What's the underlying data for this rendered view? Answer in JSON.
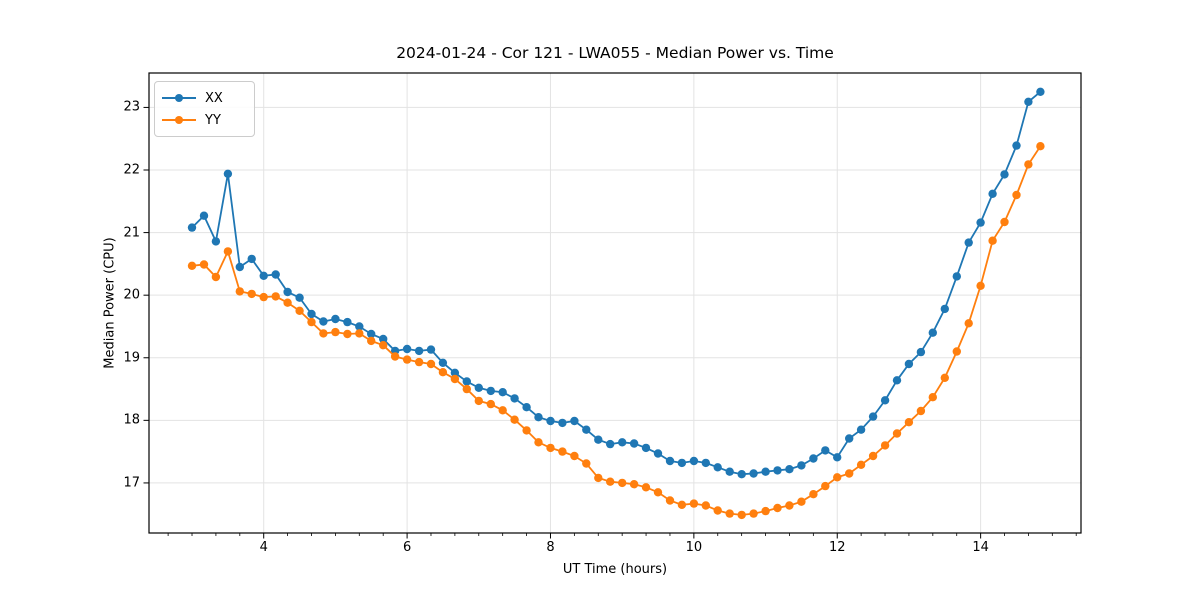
{
  "chart_data": {
    "type": "line",
    "title": "2024-01-24 - Cor 121 - LWA055 - Median Power vs. Time",
    "xlabel": "UT Time (hours)",
    "ylabel": "Median Power (CPU)",
    "xlim": [
      2.4,
      15.4
    ],
    "ylim": [
      16.2,
      23.55
    ],
    "xticks": [
      4,
      6,
      8,
      10,
      12,
      14
    ],
    "yticks": [
      17,
      18,
      19,
      20,
      21,
      22,
      23
    ],
    "x_minor_step": 0.33333,
    "grid": true,
    "grid_color": "#e3e3e3",
    "legend_position": "upper-left",
    "marker": "circle",
    "x": [
      3.0,
      3.167,
      3.333,
      3.5,
      3.667,
      3.833,
      4.0,
      4.167,
      4.333,
      4.5,
      4.667,
      4.833,
      5.0,
      5.167,
      5.333,
      5.5,
      5.667,
      5.833,
      6.0,
      6.167,
      6.333,
      6.5,
      6.667,
      6.833,
      7.0,
      7.167,
      7.333,
      7.5,
      7.667,
      7.833,
      8.0,
      8.167,
      8.333,
      8.5,
      8.667,
      8.833,
      9.0,
      9.167,
      9.333,
      9.5,
      9.667,
      9.833,
      10.0,
      10.167,
      10.333,
      10.5,
      10.667,
      10.833,
      11.0,
      11.167,
      11.333,
      11.5,
      11.667,
      11.833,
      12.0,
      12.167,
      12.333,
      12.5,
      12.667,
      12.833,
      13.0,
      13.167,
      13.333,
      13.5,
      13.667,
      13.833,
      14.0,
      14.167,
      14.333,
      14.5,
      14.667,
      14.833
    ],
    "series": [
      {
        "name": "XX",
        "color": "#1f77b4",
        "values": [
          21.08,
          21.27,
          20.86,
          21.94,
          20.45,
          20.58,
          20.31,
          20.33,
          20.05,
          19.96,
          19.7,
          19.58,
          19.62,
          19.57,
          19.5,
          19.38,
          19.3,
          19.11,
          19.14,
          19.11,
          19.13,
          18.92,
          18.76,
          18.62,
          18.52,
          18.47,
          18.45,
          18.35,
          18.21,
          18.05,
          17.99,
          17.96,
          17.99,
          17.85,
          17.69,
          17.62,
          17.65,
          17.63,
          17.56,
          17.47,
          17.35,
          17.32,
          17.35,
          17.32,
          17.25,
          17.18,
          17.14,
          17.15,
          17.18,
          17.2,
          17.22,
          17.28,
          17.39,
          17.52,
          17.41,
          17.71,
          17.85,
          18.06,
          18.32,
          18.64,
          18.9,
          19.09,
          19.4,
          19.78,
          20.3,
          20.84,
          21.16,
          21.62,
          21.93,
          22.39,
          23.09,
          23.25
        ]
      },
      {
        "name": "YY",
        "color": "#ff7f0e",
        "values": [
          20.47,
          20.49,
          20.29,
          20.7,
          20.06,
          20.02,
          19.97,
          19.98,
          19.88,
          19.75,
          19.57,
          19.39,
          19.41,
          19.38,
          19.39,
          19.27,
          19.2,
          19.02,
          18.97,
          18.93,
          18.9,
          18.77,
          18.66,
          18.5,
          18.31,
          18.26,
          18.16,
          18.01,
          17.84,
          17.65,
          17.56,
          17.5,
          17.43,
          17.31,
          17.08,
          17.02,
          17.0,
          16.98,
          16.93,
          16.85,
          16.72,
          16.65,
          16.67,
          16.64,
          16.56,
          16.51,
          16.49,
          16.51,
          16.55,
          16.6,
          16.64,
          16.7,
          16.82,
          16.95,
          17.09,
          17.15,
          17.29,
          17.43,
          17.6,
          17.79,
          17.97,
          18.15,
          18.37,
          18.68,
          19.1,
          19.55,
          20.15,
          20.87,
          21.17,
          21.6,
          22.09,
          22.38
        ]
      }
    ]
  }
}
